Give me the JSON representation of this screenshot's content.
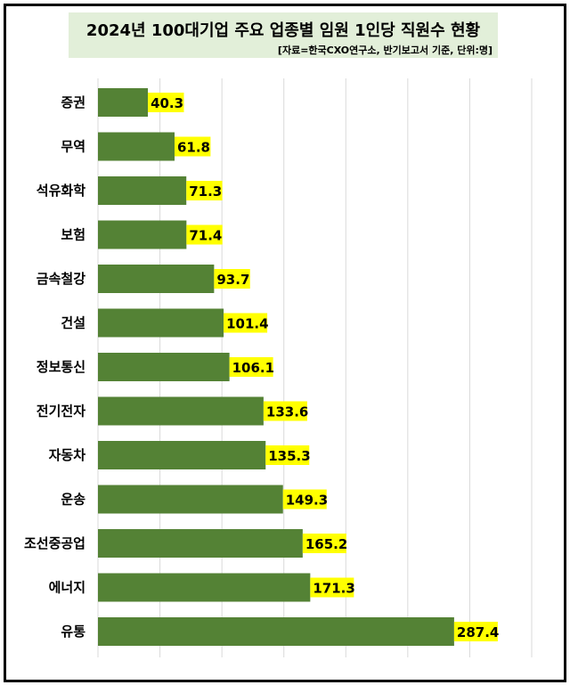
{
  "chart_data": {
    "type": "bar",
    "orientation": "horizontal",
    "title": "2024년 100대기업 주요 업종별 임원 1인당 직원수 현황",
    "subtitle": "[자료=한국CXO연구소, 반기보고서 기준, 단위:명]",
    "categories": [
      "증권",
      "무역",
      "석유화학",
      "보험",
      "금속철강",
      "건설",
      "정보통신",
      "전기전자",
      "자동차",
      "운송",
      "조선중공업",
      "에너지",
      "유통"
    ],
    "values": [
      40.3,
      61.8,
      71.3,
      71.4,
      93.7,
      101.4,
      106.1,
      133.6,
      135.3,
      149.3,
      165.2,
      171.3,
      287.4
    ],
    "xlim": [
      0,
      350
    ],
    "grid": true,
    "xlabel": "",
    "ylabel": "",
    "colors": {
      "bar": "#548235",
      "label_bg": "#ffff00",
      "title_bg": "#e2efd9",
      "grid": "#d9d9d9"
    }
  }
}
